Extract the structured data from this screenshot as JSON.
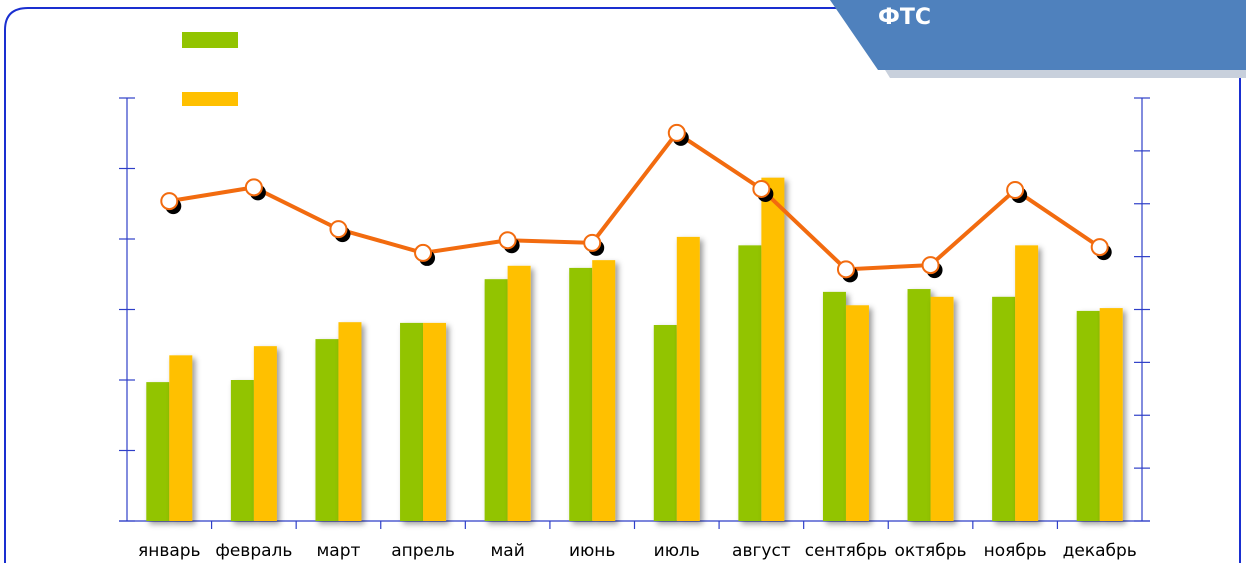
{
  "header": {
    "title": "ФТС"
  },
  "chart_data": {
    "type": "bar-line",
    "categories": [
      "январь",
      "февраль",
      "март",
      "апрель",
      "май",
      "июнь",
      "июль",
      "август",
      "сентябрь",
      "октябрь",
      "ноябрь",
      "декабрь"
    ],
    "series": [
      {
        "color": "#92c400",
        "values": [
          1.97,
          2.0,
          2.58,
          2.81,
          3.43,
          3.59,
          2.78,
          3.91,
          3.25,
          3.29,
          3.18,
          2.98
        ]
      },
      {
        "color": "#ffc000",
        "values": [
          2.35,
          2.48,
          2.82,
          2.81,
          3.62,
          3.7,
          4.03,
          4.87,
          3.06,
          3.18,
          3.91,
          3.02
        ]
      },
      {
        "color": "#f26b0f",
        "axis": "y2",
        "values": [
          6.05,
          6.31,
          5.52,
          5.07,
          5.31,
          5.26,
          7.34,
          6.28,
          4.76,
          4.84,
          6.26,
          5.18
        ]
      }
    ],
    "ylim": [
      0,
      6
    ],
    "yticks": [
      0,
      1,
      2,
      3,
      4,
      5,
      6
    ],
    "y2lim": [
      0,
      8
    ],
    "y2ticks": [
      0,
      1,
      2,
      3,
      4,
      5,
      6,
      7,
      8
    ]
  }
}
